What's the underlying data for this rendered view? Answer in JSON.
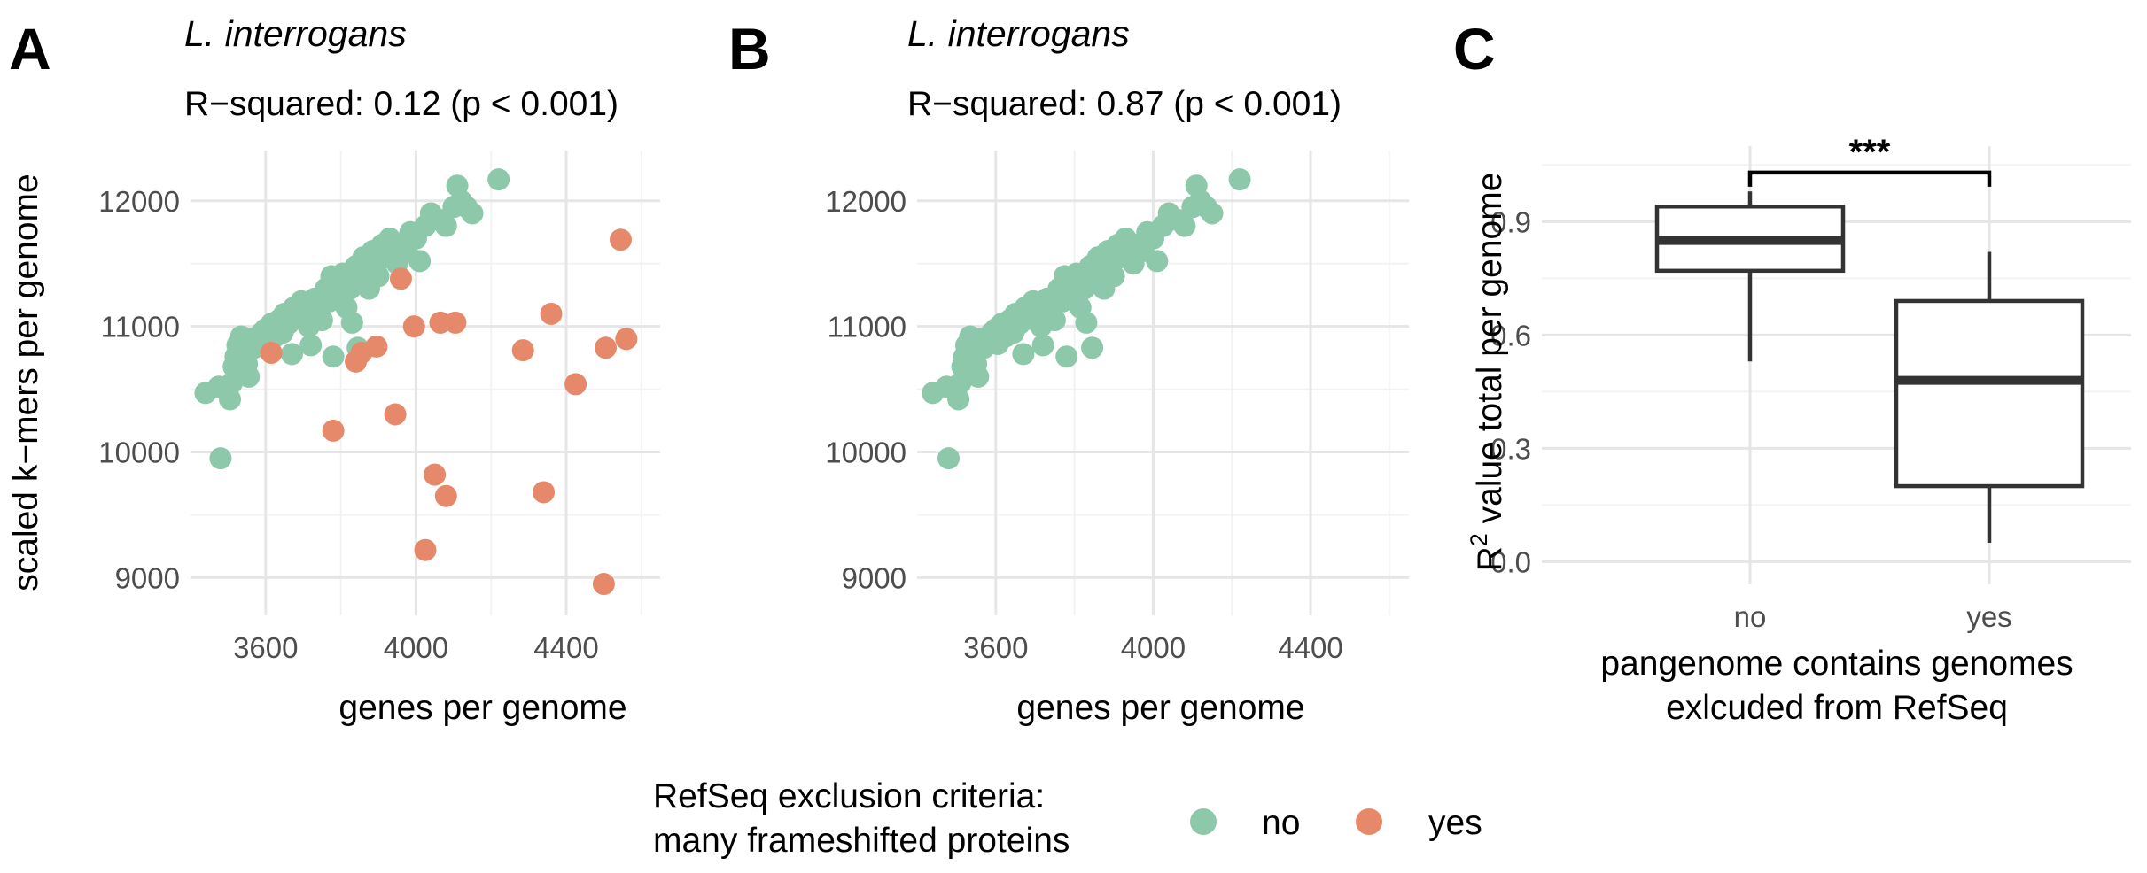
{
  "panel_letters": [
    "A",
    "B",
    "C"
  ],
  "colors": {
    "no": "#8dc8aa",
    "yes": "#e5896a",
    "box": "#333333"
  },
  "legend": {
    "title_line1": "RefSeq exclusion criteria:",
    "title_line2": "many frameshifted proteins",
    "items": [
      {
        "label": "no",
        "color": "#8dc8aa"
      },
      {
        "label": "yes",
        "color": "#e5896a"
      }
    ]
  },
  "chart_data": [
    {
      "type": "scatter",
      "panel": "A",
      "title": "L. interrogans",
      "subtitle": "R−squared:  0.12 (p < 0.001)",
      "xlabel": "genes per genome",
      "ylabel": "scaled k−mers per genome",
      "xlim": [
        3400,
        4650
      ],
      "ylim": [
        8700,
        12400
      ],
      "xticks": [
        3600,
        4000,
        4400
      ],
      "yticks": [
        9000,
        10000,
        11000,
        12000
      ],
      "grid": true,
      "series": [
        {
          "name": "no",
          "points": [
            [
              3440,
              10470
            ],
            [
              3480,
              9950
            ],
            [
              3475,
              10520
            ],
            [
              3505,
              10420
            ],
            [
              3510,
              10550
            ],
            [
              3515,
              10680
            ],
            [
              3520,
              10760
            ],
            [
              3525,
              10850
            ],
            [
              3535,
              10920
            ],
            [
              3545,
              10800
            ],
            [
              3550,
              10700
            ],
            [
              3555,
              10600
            ],
            [
              3560,
              10900
            ],
            [
              3570,
              10830
            ],
            [
              3580,
              10880
            ],
            [
              3590,
              10950
            ],
            [
              3600,
              10980
            ],
            [
              3605,
              10860
            ],
            [
              3615,
              11020
            ],
            [
              3625,
              10920
            ],
            [
              3635,
              11050
            ],
            [
              3645,
              10950
            ],
            [
              3650,
              11100
            ],
            [
              3660,
              11020
            ],
            [
              3670,
              10780
            ],
            [
              3675,
              11150
            ],
            [
              3685,
              11060
            ],
            [
              3695,
              11200
            ],
            [
              3705,
              11110
            ],
            [
              3715,
              11000
            ],
            [
              3720,
              10850
            ],
            [
              3730,
              11220
            ],
            [
              3740,
              11150
            ],
            [
              3750,
              11050
            ],
            [
              3760,
              11300
            ],
            [
              3770,
              11200
            ],
            [
              3775,
              11400
            ],
            [
              3780,
              10760
            ],
            [
              3790,
              11350
            ],
            [
              3800,
              11250
            ],
            [
              3805,
              11420
            ],
            [
              3815,
              11150
            ],
            [
              3825,
              11300
            ],
            [
              3830,
              11030
            ],
            [
              3840,
              11480
            ],
            [
              3845,
              10830
            ],
            [
              3850,
              11380
            ],
            [
              3860,
              11550
            ],
            [
              3870,
              11450
            ],
            [
              3875,
              11300
            ],
            [
              3885,
              11600
            ],
            [
              3895,
              11500
            ],
            [
              3900,
              11400
            ],
            [
              3910,
              11650
            ],
            [
              3920,
              11550
            ],
            [
              3930,
              11700
            ],
            [
              3940,
              11600
            ],
            [
              3950,
              11500
            ],
            [
              3960,
              11650
            ],
            [
              3975,
              11600
            ],
            [
              3985,
              11750
            ],
            [
              4000,
              11700
            ],
            [
              4010,
              11520
            ],
            [
              4025,
              11800
            ],
            [
              4040,
              11900
            ],
            [
              4060,
              11850
            ],
            [
              4080,
              11800
            ],
            [
              4100,
              11950
            ],
            [
              4110,
              12120
            ],
            [
              4120,
              12000
            ],
            [
              4135,
              11950
            ],
            [
              4150,
              11900
            ],
            [
              4220,
              12170
            ]
          ]
        },
        {
          "name": "yes",
          "points": [
            [
              3615,
              10790
            ],
            [
              3780,
              10170
            ],
            [
              3840,
              10720
            ],
            [
              3855,
              10790
            ],
            [
              3895,
              10840
            ],
            [
              3945,
              10300
            ],
            [
              3960,
              11380
            ],
            [
              3995,
              11000
            ],
            [
              4025,
              9220
            ],
            [
              4050,
              9820
            ],
            [
              4065,
              11030
            ],
            [
              4080,
              9650
            ],
            [
              4105,
              11030
            ],
            [
              4285,
              10810
            ],
            [
              4340,
              9680
            ],
            [
              4360,
              11100
            ],
            [
              4425,
              10540
            ],
            [
              4500,
              8950
            ],
            [
              4505,
              10830
            ],
            [
              4545,
              11690
            ],
            [
              4560,
              10900
            ]
          ]
        }
      ]
    },
    {
      "type": "scatter",
      "panel": "B",
      "title": "L. interrogans",
      "subtitle": "R−squared:  0.87 (p < 0.001)",
      "xlabel": "genes per genome",
      "ylabel": "",
      "xlim": [
        3400,
        4650
      ],
      "ylim": [
        8700,
        12400
      ],
      "xticks": [
        3600,
        4000,
        4400
      ],
      "yticks": [
        9000,
        10000,
        11000,
        12000
      ],
      "grid": true,
      "series": [
        {
          "name": "no",
          "points": [
            [
              3440,
              10470
            ],
            [
              3480,
              9950
            ],
            [
              3475,
              10520
            ],
            [
              3505,
              10420
            ],
            [
              3510,
              10550
            ],
            [
              3515,
              10680
            ],
            [
              3520,
              10760
            ],
            [
              3525,
              10850
            ],
            [
              3535,
              10920
            ],
            [
              3545,
              10800
            ],
            [
              3550,
              10700
            ],
            [
              3555,
              10600
            ],
            [
              3560,
              10900
            ],
            [
              3570,
              10830
            ],
            [
              3580,
              10880
            ],
            [
              3590,
              10950
            ],
            [
              3600,
              10980
            ],
            [
              3605,
              10860
            ],
            [
              3615,
              11020
            ],
            [
              3625,
              10920
            ],
            [
              3635,
              11050
            ],
            [
              3645,
              10950
            ],
            [
              3650,
              11100
            ],
            [
              3660,
              11020
            ],
            [
              3670,
              10780
            ],
            [
              3675,
              11150
            ],
            [
              3685,
              11060
            ],
            [
              3695,
              11200
            ],
            [
              3705,
              11110
            ],
            [
              3715,
              11000
            ],
            [
              3720,
              10850
            ],
            [
              3730,
              11220
            ],
            [
              3740,
              11150
            ],
            [
              3750,
              11050
            ],
            [
              3760,
              11300
            ],
            [
              3770,
              11200
            ],
            [
              3775,
              11400
            ],
            [
              3780,
              10760
            ],
            [
              3790,
              11350
            ],
            [
              3800,
              11250
            ],
            [
              3805,
              11420
            ],
            [
              3815,
              11150
            ],
            [
              3825,
              11300
            ],
            [
              3830,
              11030
            ],
            [
              3840,
              11480
            ],
            [
              3845,
              10830
            ],
            [
              3850,
              11380
            ],
            [
              3860,
              11550
            ],
            [
              3870,
              11450
            ],
            [
              3875,
              11300
            ],
            [
              3885,
              11600
            ],
            [
              3895,
              11500
            ],
            [
              3900,
              11400
            ],
            [
              3910,
              11650
            ],
            [
              3920,
              11550
            ],
            [
              3930,
              11700
            ],
            [
              3940,
              11600
            ],
            [
              3950,
              11500
            ],
            [
              3960,
              11650
            ],
            [
              3975,
              11600
            ],
            [
              3985,
              11750
            ],
            [
              4000,
              11700
            ],
            [
              4010,
              11520
            ],
            [
              4025,
              11800
            ],
            [
              4040,
              11900
            ],
            [
              4060,
              11850
            ],
            [
              4080,
              11800
            ],
            [
              4100,
              11950
            ],
            [
              4110,
              12120
            ],
            [
              4120,
              12000
            ],
            [
              4135,
              11950
            ],
            [
              4150,
              11900
            ],
            [
              4220,
              12170
            ]
          ]
        }
      ]
    },
    {
      "type": "box",
      "panel": "C",
      "ylabel_prefix": "R",
      "ylabel_sup": "2",
      "ylabel_suffix": " value total per genome",
      "xlabel_line1": "pangenome contains genomes",
      "xlabel_line2": "exlcuded from RefSeq",
      "categories": [
        "no",
        "yes"
      ],
      "ylim": [
        -0.06,
        1.1
      ],
      "yticks": [
        "0.0",
        "0.3",
        "0.6",
        "0.9"
      ],
      "ytick_values": [
        0.0,
        0.3,
        0.6,
        0.9
      ],
      "grid": true,
      "boxes": [
        {
          "category": "no",
          "whisker_low": 0.53,
          "q1": 0.77,
          "median": 0.85,
          "q3": 0.94,
          "whisker_high": 0.98
        },
        {
          "category": "yes",
          "whisker_low": 0.05,
          "q1": 0.2,
          "median": 0.48,
          "q3": 0.69,
          "whisker_high": 0.82
        }
      ],
      "significance": {
        "label": "***",
        "y": 1.03
      }
    }
  ]
}
